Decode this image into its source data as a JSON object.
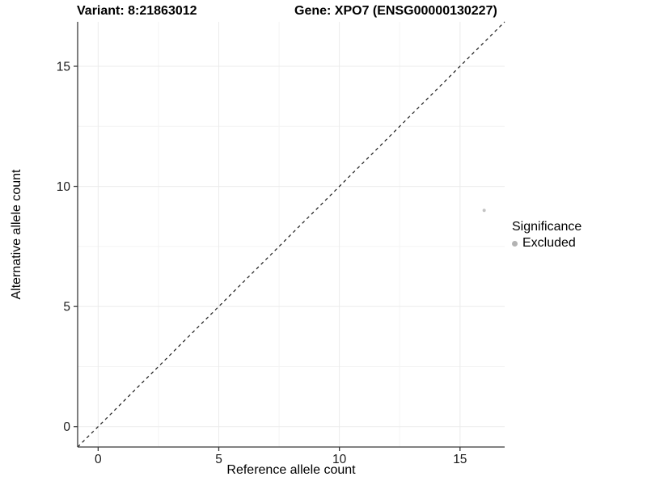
{
  "chart_data": {
    "type": "scatter",
    "title_left": "Variant: 8:21863012",
    "title_right": "Gene: XPO7 (ENSG00000130227)",
    "xlabel": "Reference allele count",
    "ylabel": "Alternative allele count",
    "xlim": [
      -0.85,
      16.85
    ],
    "ylim": [
      -0.85,
      16.85
    ],
    "x_ticks": [
      0,
      5,
      10,
      15
    ],
    "y_ticks": [
      0,
      5,
      10,
      15
    ],
    "x_minor_ticks": [
      2.5,
      7.5,
      12.5
    ],
    "y_minor_ticks": [
      2.5,
      7.5,
      12.5
    ],
    "grid": true,
    "reference_line": {
      "kind": "identity",
      "style": "dashed"
    },
    "points": [
      {
        "x": 16,
        "y": 9,
        "series": "Excluded"
      }
    ],
    "legend": {
      "title": "Significance",
      "position": "right",
      "entries": [
        {
          "label": "Excluded",
          "color": "#bdbdbd"
        }
      ]
    },
    "style": {
      "point_color": "#c3c3c3",
      "point_radius": 2,
      "legend_key_color": "#b3b3b3",
      "grid_major_color": "#ebebeb",
      "grid_minor_color": "#f4f4f4",
      "axis_color": "#383838",
      "tick_label_color": "#1a1a1a",
      "identity_line_color": "#1a1a1a"
    }
  }
}
